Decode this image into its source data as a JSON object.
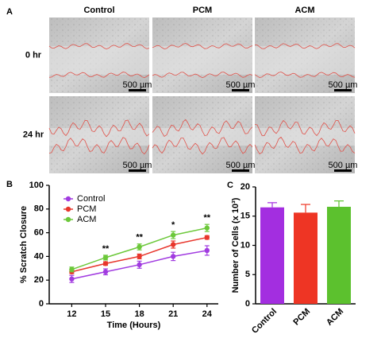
{
  "figure_a": {
    "panel": "A",
    "columns": [
      "Control",
      "PCM",
      "ACM"
    ],
    "rows": [
      "0 hr",
      "24 hr"
    ],
    "scale_bar": "500 µm"
  },
  "chart_data": [
    {
      "type": "line",
      "panel": "B",
      "xlabel": "Time (Hours)",
      "ylabel": "% Scratch Closure",
      "x": [
        12,
        15,
        18,
        21,
        24
      ],
      "xlim": [
        10,
        25
      ],
      "xticks": [
        12,
        15,
        18,
        21,
        24
      ],
      "ylim": [
        0,
        100
      ],
      "yticks": [
        0,
        20,
        40,
        60,
        80,
        100
      ],
      "legend": "upper-left",
      "series": [
        {
          "name": "Control",
          "color": "#a13be0",
          "values": [
            21,
            27,
            33,
            40,
            45
          ],
          "errors": [
            3,
            2.5,
            3,
            3.5,
            4
          ]
        },
        {
          "name": "PCM",
          "color": "#e8362c",
          "values": [
            27,
            34,
            40,
            50,
            56
          ],
          "errors": [
            1.5,
            1.5,
            2,
            3,
            1.5
          ]
        },
        {
          "name": "ACM",
          "color": "#6cc83a",
          "values": [
            29,
            39,
            48,
            58,
            64
          ],
          "errors": [
            2,
            2,
            2.5,
            3,
            3
          ]
        }
      ],
      "annotations": [
        {
          "x": 15,
          "text": "**"
        },
        {
          "x": 18,
          "text": "**"
        },
        {
          "x": 21,
          "text": "*"
        },
        {
          "x": 24,
          "text": "**"
        }
      ]
    },
    {
      "type": "bar",
      "panel": "C",
      "ylabel": "Number of  Cells (x 10³)",
      "categories": [
        "Control",
        "PCM",
        "ACM"
      ],
      "values": [
        16.5,
        15.6,
        16.6
      ],
      "errors": [
        0.8,
        1.4,
        1.0
      ],
      "colors": [
        "#a32ee0",
        "#ee3524",
        "#5cc12e"
      ],
      "ylim": [
        0,
        20
      ],
      "yticks": [
        0,
        5,
        10,
        15,
        20
      ]
    }
  ]
}
